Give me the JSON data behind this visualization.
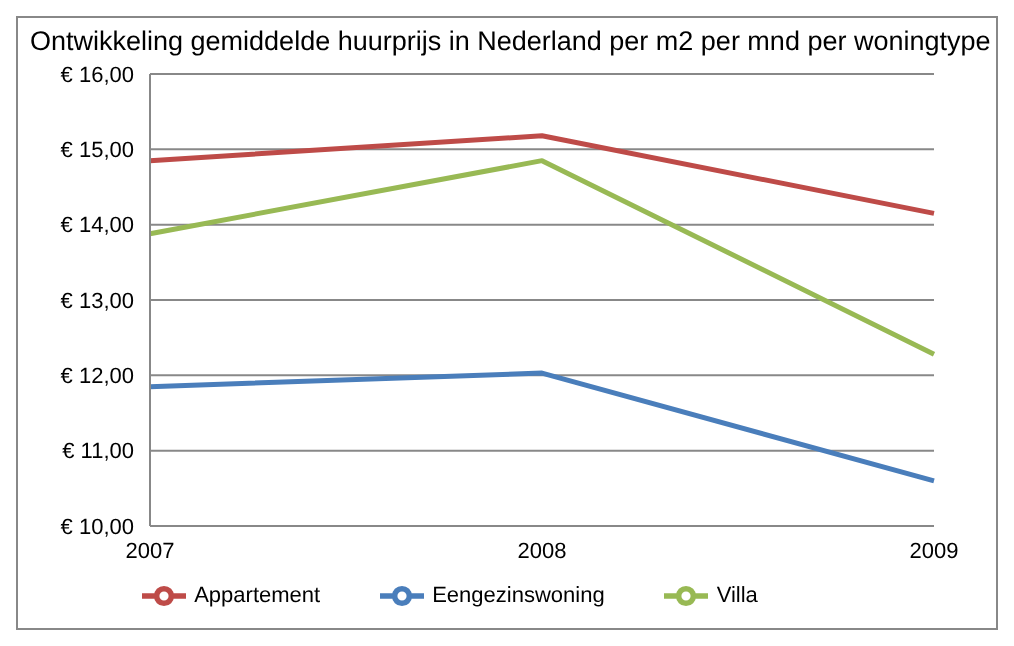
{
  "chart_data": {
    "type": "line",
    "title": "Ontwikkeling gemiddelde huurprijs in Nederland per m2 per mnd per woningtype",
    "categories": [
      "2007",
      "2008",
      "2009"
    ],
    "series": [
      {
        "name": "Eengezinswoning",
        "color": "#4a7ebb",
        "values": [
          11.85,
          12.03,
          10.6
        ]
      },
      {
        "name": "Appartement",
        "color": "#be4b48",
        "values": [
          14.85,
          15.18,
          14.15
        ]
      },
      {
        "name": "Villa",
        "color": "#98b954",
        "values": [
          13.88,
          14.85,
          12.28
        ]
      }
    ],
    "ylim": [
      10,
      16
    ],
    "yticks": [
      {
        "value": 10,
        "label": "€ 10,00"
      },
      {
        "value": 11,
        "label": "€ 11,00"
      },
      {
        "value": 12,
        "label": "€ 12,00"
      },
      {
        "value": 13,
        "label": "€ 13,00"
      },
      {
        "value": 14,
        "label": "€ 14,00"
      },
      {
        "value": 15,
        "label": "€ 15,00"
      },
      {
        "value": 16,
        "label": "€ 16,00"
      }
    ],
    "grid": "y",
    "legend": "bottom",
    "marker": "none",
    "line_style": "solid"
  }
}
